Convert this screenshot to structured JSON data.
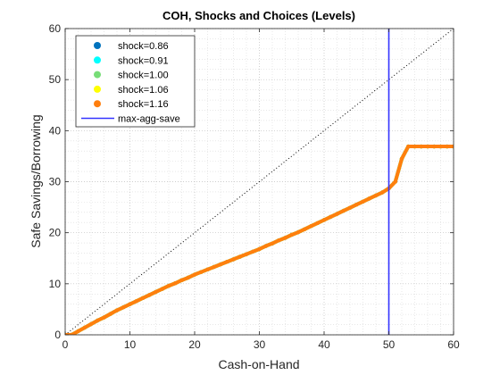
{
  "chart_data": {
    "type": "scatter",
    "title": "COH, Shocks and Choices (Levels)",
    "xlabel": "Cash-on-Hand",
    "ylabel": "Safe Savings/Borrowing",
    "xlim": [
      0,
      60
    ],
    "ylim": [
      0,
      60
    ],
    "xticks": [
      "0",
      "10",
      "20",
      "30",
      "40",
      "50",
      "60"
    ],
    "yticks": [
      "0",
      "10",
      "20",
      "30",
      "40",
      "50",
      "60"
    ],
    "grid": "major and minor dotted",
    "legend_position": "top-left",
    "series": [
      {
        "name": "shock=0.86",
        "color": "#0072BD",
        "marker": "dot",
        "x": [
          0,
          1,
          2,
          3,
          4,
          5,
          6,
          7,
          8,
          9,
          10,
          11,
          12,
          13,
          14,
          15,
          16,
          17,
          18,
          19,
          20,
          21,
          22,
          23,
          24,
          25,
          26,
          27,
          28,
          29,
          30,
          31,
          32,
          33,
          34,
          35,
          36,
          37,
          38,
          39,
          40,
          41,
          42,
          43,
          44,
          45,
          46,
          47,
          48,
          49,
          50,
          51,
          52,
          53,
          54,
          55,
          56,
          57,
          58,
          59,
          60
        ],
        "y": [
          0,
          0,
          0.7,
          1.4,
          2.1,
          2.8,
          3.4,
          4.1,
          4.8,
          5.4,
          6.0,
          6.6,
          7.2,
          7.8,
          8.4,
          9.0,
          9.6,
          10.1,
          10.7,
          11.2,
          11.8,
          12.3,
          12.8,
          13.3,
          13.8,
          14.3,
          14.8,
          15.3,
          15.8,
          16.3,
          16.8,
          17.4,
          17.9,
          18.5,
          19.0,
          19.6,
          20.1,
          20.7,
          21.3,
          21.9,
          22.5,
          23.1,
          23.7,
          24.3,
          24.9,
          25.5,
          26.1,
          26.7,
          27.3,
          27.9,
          28.7,
          30.0,
          34.5,
          36.9,
          36.9,
          36.9,
          36.9,
          36.9,
          36.9,
          36.9,
          36.9
        ]
      },
      {
        "name": "shock=0.91",
        "color": "#00FFFF",
        "marker": "dot",
        "x": [
          0,
          1,
          2,
          3,
          4,
          5,
          6,
          7,
          8,
          9,
          10,
          11,
          12,
          13,
          14,
          15,
          16,
          17,
          18,
          19,
          20,
          21,
          22,
          23,
          24,
          25,
          26,
          27,
          28,
          29,
          30,
          31,
          32,
          33,
          34,
          35,
          36,
          37,
          38,
          39,
          40,
          41,
          42,
          43,
          44,
          45,
          46,
          47,
          48,
          49,
          50,
          51,
          52,
          53,
          54,
          55,
          56,
          57,
          58,
          59,
          60
        ],
        "y": [
          0,
          0,
          0.7,
          1.4,
          2.1,
          2.8,
          3.4,
          4.1,
          4.8,
          5.4,
          6.0,
          6.6,
          7.2,
          7.8,
          8.4,
          9.0,
          9.6,
          10.1,
          10.7,
          11.2,
          11.8,
          12.3,
          12.8,
          13.3,
          13.8,
          14.3,
          14.8,
          15.3,
          15.8,
          16.3,
          16.8,
          17.4,
          17.9,
          18.5,
          19.0,
          19.6,
          20.1,
          20.7,
          21.3,
          21.9,
          22.5,
          23.1,
          23.7,
          24.3,
          24.9,
          25.5,
          26.1,
          26.7,
          27.3,
          27.9,
          28.7,
          30.0,
          34.5,
          36.9,
          36.9,
          36.9,
          36.9,
          36.9,
          36.9,
          36.9,
          36.9
        ]
      },
      {
        "name": "shock=1.00",
        "color": "#77DD77",
        "marker": "dot",
        "x": [
          0,
          1,
          2,
          3,
          4,
          5,
          6,
          7,
          8,
          9,
          10,
          11,
          12,
          13,
          14,
          15,
          16,
          17,
          18,
          19,
          20,
          21,
          22,
          23,
          24,
          25,
          26,
          27,
          28,
          29,
          30,
          31,
          32,
          33,
          34,
          35,
          36,
          37,
          38,
          39,
          40,
          41,
          42,
          43,
          44,
          45,
          46,
          47,
          48,
          49,
          50,
          51,
          52,
          53,
          54,
          55,
          56,
          57,
          58,
          59,
          60
        ],
        "y": [
          0,
          0,
          0.7,
          1.4,
          2.1,
          2.8,
          3.4,
          4.1,
          4.8,
          5.4,
          6.0,
          6.6,
          7.2,
          7.8,
          8.4,
          9.0,
          9.6,
          10.1,
          10.7,
          11.2,
          11.8,
          12.3,
          12.8,
          13.3,
          13.8,
          14.3,
          14.8,
          15.3,
          15.8,
          16.3,
          16.8,
          17.4,
          17.9,
          18.5,
          19.0,
          19.6,
          20.1,
          20.7,
          21.3,
          21.9,
          22.5,
          23.1,
          23.7,
          24.3,
          24.9,
          25.5,
          26.1,
          26.7,
          27.3,
          27.9,
          28.7,
          30.0,
          34.5,
          36.9,
          36.9,
          36.9,
          36.9,
          36.9,
          36.9,
          36.9,
          36.9
        ]
      },
      {
        "name": "shock=1.06",
        "color": "#FFFF00",
        "marker": "dot",
        "x": [
          0,
          1,
          2,
          3,
          4,
          5,
          6,
          7,
          8,
          9,
          10,
          11,
          12,
          13,
          14,
          15,
          16,
          17,
          18,
          19,
          20,
          21,
          22,
          23,
          24,
          25,
          26,
          27,
          28,
          29,
          30,
          31,
          32,
          33,
          34,
          35,
          36,
          37,
          38,
          39,
          40,
          41,
          42,
          43,
          44,
          45,
          46,
          47,
          48,
          49,
          50,
          51,
          52,
          53,
          54,
          55,
          56,
          57,
          58,
          59,
          60
        ],
        "y": [
          0,
          0,
          0.7,
          1.4,
          2.1,
          2.8,
          3.4,
          4.1,
          4.8,
          5.4,
          6.0,
          6.6,
          7.2,
          7.8,
          8.4,
          9.0,
          9.6,
          10.1,
          10.7,
          11.2,
          11.8,
          12.3,
          12.8,
          13.3,
          13.8,
          14.3,
          14.8,
          15.3,
          15.8,
          16.3,
          16.8,
          17.4,
          17.9,
          18.5,
          19.0,
          19.6,
          20.1,
          20.7,
          21.3,
          21.9,
          22.5,
          23.1,
          23.7,
          24.3,
          24.9,
          25.5,
          26.1,
          26.7,
          27.3,
          27.9,
          28.7,
          30.0,
          34.5,
          36.9,
          36.9,
          36.9,
          36.9,
          36.9,
          36.9,
          36.9,
          36.9
        ]
      },
      {
        "name": "shock=1.16",
        "color": "#FF7F0E",
        "marker": "dot",
        "x": [
          0,
          1,
          2,
          3,
          4,
          5,
          6,
          7,
          8,
          9,
          10,
          11,
          12,
          13,
          14,
          15,
          16,
          17,
          18,
          19,
          20,
          21,
          22,
          23,
          24,
          25,
          26,
          27,
          28,
          29,
          30,
          31,
          32,
          33,
          34,
          35,
          36,
          37,
          38,
          39,
          40,
          41,
          42,
          43,
          44,
          45,
          46,
          47,
          48,
          49,
          50,
          51,
          52,
          53,
          54,
          55,
          56,
          57,
          58,
          59,
          60
        ],
        "y": [
          0,
          0,
          0.7,
          1.4,
          2.1,
          2.8,
          3.4,
          4.1,
          4.8,
          5.4,
          6.0,
          6.6,
          7.2,
          7.8,
          8.4,
          9.0,
          9.6,
          10.1,
          10.7,
          11.2,
          11.8,
          12.3,
          12.8,
          13.3,
          13.8,
          14.3,
          14.8,
          15.3,
          15.8,
          16.3,
          16.8,
          17.4,
          17.9,
          18.5,
          19.0,
          19.6,
          20.1,
          20.7,
          21.3,
          21.9,
          22.5,
          23.1,
          23.7,
          24.3,
          24.9,
          25.5,
          26.1,
          26.7,
          27.3,
          27.9,
          28.7,
          30.0,
          34.5,
          36.9,
          36.9,
          36.9,
          36.9,
          36.9,
          36.9,
          36.9,
          36.9
        ]
      },
      {
        "name": "max-agg-save",
        "color": "#3333FF",
        "marker": "line",
        "x": [
          50,
          50
        ],
        "y": [
          0,
          60
        ]
      }
    ],
    "reference_line": {
      "style": "dotted",
      "color": "#000000",
      "x": [
        0,
        60
      ],
      "y": [
        0,
        60
      ]
    }
  }
}
